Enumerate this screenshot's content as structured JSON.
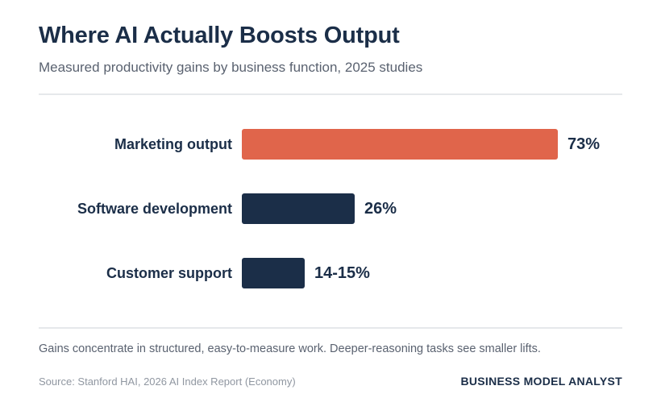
{
  "header": {
    "title": "Where AI Actually Boosts Output",
    "subtitle": "Measured productivity gains by business function, 2025 studies"
  },
  "chart_data": {
    "type": "bar",
    "orientation": "horizontal",
    "title": "Where AI Actually Boosts Output",
    "subtitle": "Measured productivity gains by business function, 2025 studies",
    "categories": [
      "Marketing output",
      "Software development",
      "Customer support"
    ],
    "values": [
      73,
      26,
      14.5
    ],
    "value_labels": [
      "73%",
      "26%",
      "14-15%"
    ],
    "unit": "%",
    "xlim": [
      0,
      73
    ],
    "grid": false,
    "legend": "none",
    "bar_colors": [
      "#e0654b",
      "#1b2e48",
      "#1b2e48"
    ]
  },
  "footer": {
    "note": "Gains concentrate in structured, easy-to-measure work. Deeper-reasoning tasks see smaller lifts.",
    "source": "Source: Stanford HAI, 2026 AI Index Report (Economy)",
    "brand": "BUSINESS MODEL ANALYST"
  },
  "colors": {
    "highlight": "#e0654b",
    "primary": "#1b2e48",
    "muted_text": "#5a6270",
    "source_text": "#9097a1",
    "divider": "#e6e8eb"
  }
}
